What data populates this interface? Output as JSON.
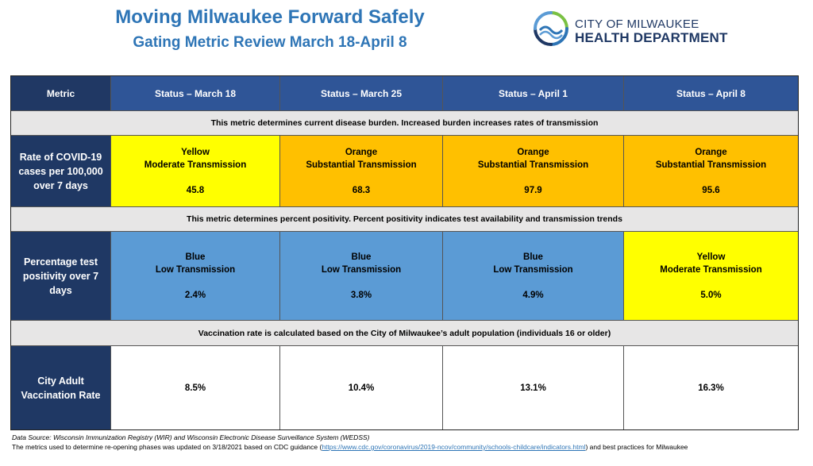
{
  "title": "Moving Milwaukee Forward Safely",
  "subtitle": "Gating Metric Review March 18-April 8",
  "logo": {
    "line1": "CITY OF MILWAUKEE",
    "line2": "HEALTH DEPARTMENT"
  },
  "table": {
    "header": [
      "Metric",
      "Status – March 18",
      "Status – March 25",
      "Status – April 1",
      "Status – April 8"
    ],
    "notes": [
      "This metric determines current disease burden. Increased burden increases rates of transmission",
      "This metric determines percent positivity. Percent positivity indicates test availability and transmission trends",
      "Vaccination rate is calculated based on the City of Milwaukee’s adult population (individuals 16 or older)"
    ],
    "rows": [
      {
        "metric": "Rate of COVID-19 cases per 100,000 over 7 days",
        "cells": [
          {
            "level": "Yellow",
            "desc": "Moderate Transmission",
            "value": "45.8",
            "color": "#ffff00"
          },
          {
            "level": "Orange",
            "desc": "Substantial Transmission",
            "value": "68.3",
            "color": "#ffc000"
          },
          {
            "level": "Orange",
            "desc": "Substantial Transmission",
            "value": "97.9",
            "color": "#ffc000"
          },
          {
            "level": "Orange",
            "desc": "Substantial Transmission",
            "value": "95.6",
            "color": "#ffc000"
          }
        ]
      },
      {
        "metric": "Percentage test positivity over 7 days",
        "cells": [
          {
            "level": "Blue",
            "desc": "Low Transmission",
            "value": "2.4%",
            "color": "#5b9bd5"
          },
          {
            "level": "Blue",
            "desc": "Low Transmission",
            "value": "3.8%",
            "color": "#5b9bd5"
          },
          {
            "level": "Blue",
            "desc": "Low Transmission",
            "value": "4.9%",
            "color": "#5b9bd5"
          },
          {
            "level": "Yellow",
            "desc": "Moderate Transmission",
            "value": "5.0%",
            "color": "#ffff00"
          }
        ]
      },
      {
        "metric": "City Adult Vaccination Rate",
        "cells": [
          {
            "value": "8.5%"
          },
          {
            "value": "10.4%"
          },
          {
            "value": "13.1%"
          },
          {
            "value": "16.3%"
          }
        ]
      }
    ]
  },
  "footer": {
    "source": "Data Source: Wisconsin Immunization Registry (WIR) and Wisconsin Electronic Disease Surveillance System (WEDSS)",
    "update_prefix": "The metrics used to determine re-opening phases was updated on 3/18/2021 based on CDC guidance (",
    "update_link": "https://www.cdc.gov/coronavirus/2019-ncov/community/schools-childcare/indicators.html",
    "update_suffix": ") and best practices for Milwaukee"
  }
}
